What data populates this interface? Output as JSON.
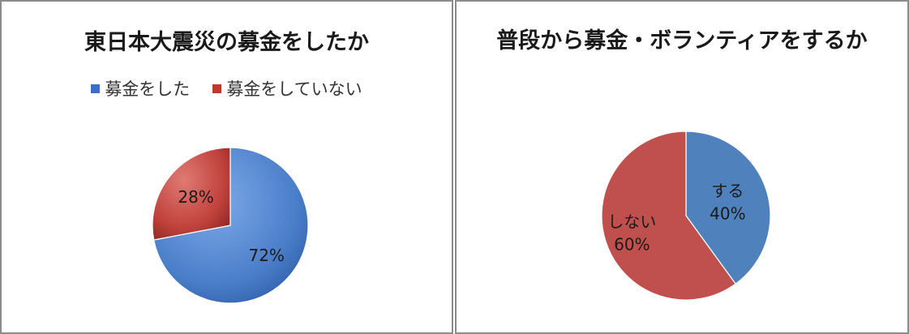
{
  "charts": [
    {
      "title": "東日本大震災の募金をしたか",
      "legend": [
        "募金をした",
        "募金をしていない"
      ]
    },
    {
      "title": "普段から募金・ボランティアをするか"
    }
  ],
  "chart_data": [
    {
      "type": "pie",
      "title": "東日本大震災の募金をしたか",
      "legend_position": "top",
      "slices": [
        {
          "label": "募金をした",
          "value": 72,
          "value_label": "72%",
          "color": "#4a7ec9"
        },
        {
          "label": "募金をしていない",
          "value": 28,
          "value_label": "28%",
          "color": "#c0413c"
        }
      ]
    },
    {
      "type": "pie",
      "title": "普段から募金・ボランティアをするか",
      "legend_position": "none",
      "slices": [
        {
          "label": "する",
          "value": 40,
          "value_label": "40%",
          "color": "#4f81bd"
        },
        {
          "label": "しない",
          "value": 60,
          "value_label": "60%",
          "color": "#c0504d"
        }
      ]
    }
  ]
}
